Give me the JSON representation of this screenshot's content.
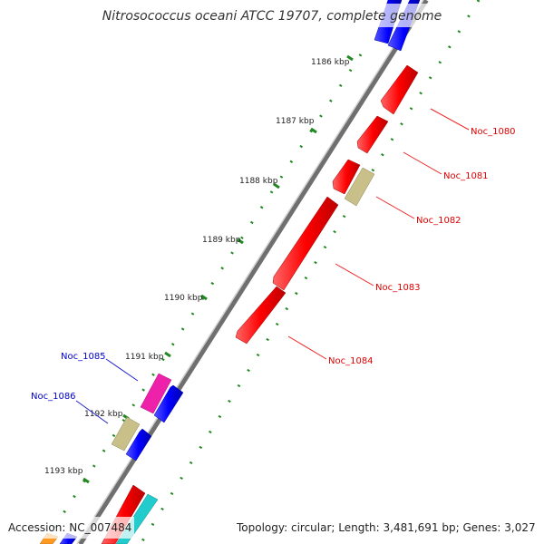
{
  "title": "Nitrosococcus oceani ATCC 19707, complete genome",
  "footer": {
    "accession": "Accession: NC_007484",
    "topology": "Topology: circular; Length: 3,481,691 bp; Genes: 3,027"
  },
  "kbp_labels": [
    "1186 kbp",
    "1187 kbp",
    "1188 kbp",
    "1189 kbp",
    "1190 kbp",
    "1191 kbp",
    "1192 kbp",
    "1193 kbp"
  ],
  "genes_forward": [
    "Noc_1080",
    "Noc_1081",
    "Noc_1082",
    "Noc_1083",
    "Noc_1084"
  ],
  "genes_reverse": [
    "Noc_1085",
    "Noc_1086"
  ],
  "colors": {
    "forward_cds": "#ff0000",
    "reverse_cds": "#0000ee",
    "blue_feature": "#0000ff",
    "tan_feature": "#c8c088",
    "magenta_feature": "#ee22aa",
    "cyan_feature": "#22cccc",
    "orange_feature": "#ff9922",
    "backbone": "#888888",
    "tick_dots": "#228822"
  }
}
